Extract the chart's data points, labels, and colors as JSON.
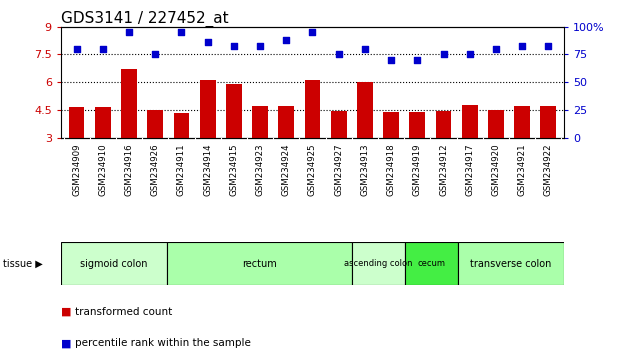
{
  "title": "GDS3141 / 227452_at",
  "samples": [
    "GSM234909",
    "GSM234910",
    "GSM234916",
    "GSM234926",
    "GSM234911",
    "GSM234914",
    "GSM234915",
    "GSM234923",
    "GSM234924",
    "GSM234925",
    "GSM234927",
    "GSM234913",
    "GSM234918",
    "GSM234919",
    "GSM234912",
    "GSM234917",
    "GSM234920",
    "GSM234921",
    "GSM234922"
  ],
  "bar_values": [
    4.65,
    4.65,
    6.7,
    4.5,
    4.35,
    6.15,
    5.9,
    4.75,
    4.7,
    6.1,
    4.45,
    6.0,
    4.4,
    4.4,
    4.45,
    4.8,
    4.5,
    4.7,
    4.7
  ],
  "dot_values": [
    80,
    80,
    95,
    75,
    95,
    86,
    83,
    83,
    88,
    95,
    75,
    80,
    70,
    70,
    75,
    75,
    80,
    83,
    83
  ],
  "tissues": [
    {
      "label": "sigmoid colon",
      "start": 0,
      "end": 4,
      "color": "#ccffcc"
    },
    {
      "label": "rectum",
      "start": 4,
      "end": 11,
      "color": "#aaffaa"
    },
    {
      "label": "ascending colon",
      "start": 11,
      "end": 13,
      "color": "#ccffcc"
    },
    {
      "label": "cecum",
      "start": 13,
      "end": 15,
      "color": "#44ee44"
    },
    {
      "label": "transverse colon",
      "start": 15,
      "end": 19,
      "color": "#aaffaa"
    }
  ],
  "ylim_left": [
    3,
    9
  ],
  "ylim_right": [
    0,
    100
  ],
  "yticks_left": [
    3,
    4.5,
    6,
    7.5,
    9
  ],
  "ytick_labels_left": [
    "3",
    "4.5",
    "6",
    "7.5",
    "9"
  ],
  "yticks_right": [
    0,
    25,
    50,
    75,
    100
  ],
  "ytick_labels_right": [
    "0",
    "25",
    "50",
    "75",
    "100%"
  ],
  "hlines": [
    4.5,
    6.0,
    7.5
  ],
  "bar_color": "#cc0000",
  "dot_color": "#0000cc",
  "bar_width": 0.6,
  "bg_color": "#ffffff",
  "tick_bg_color": "#d8d8d8"
}
